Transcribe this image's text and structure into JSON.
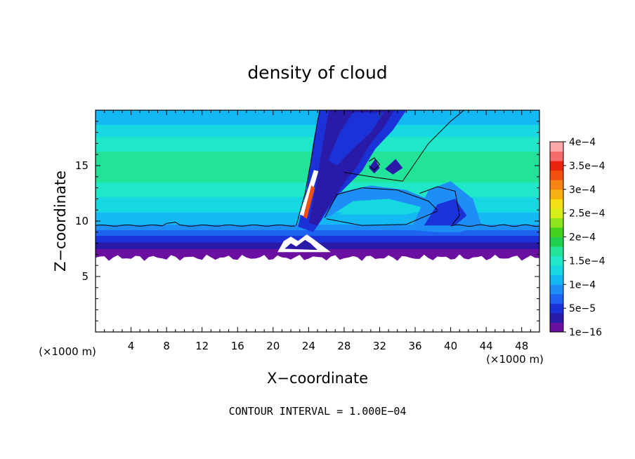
{
  "chart_data": {
    "type": "heatmap",
    "title": "density of cloud",
    "xlabel": "X−coordinate",
    "ylabel": "Z−coordinate",
    "x_unit": "(×1000 m)",
    "y_unit": "(×1000 m)",
    "xlim": [
      0,
      50
    ],
    "ylim": [
      0,
      20
    ],
    "x_ticks": [
      4,
      8,
      12,
      16,
      20,
      24,
      28,
      32,
      36,
      40,
      44,
      48
    ],
    "y_ticks": [
      5,
      10,
      15
    ],
    "footer": "CONTOUR INTERVAL = 1.000E−04",
    "colorbar": {
      "labels": [
        "1e−16",
        "5e−5",
        "1e−4",
        "1.5e−4",
        "2e−4",
        "2.5e−4",
        "3e−4",
        "3.5e−4",
        "4e−4"
      ],
      "values": [
        1e-16,
        5e-05,
        0.0001,
        0.00015,
        0.0002,
        0.00025,
        0.0003,
        0.00035,
        0.0004
      ],
      "colors": [
        "#6a0fa0",
        "#2a1aa8",
        "#1a32d8",
        "#1e62f0",
        "#1d8ef5",
        "#14b8f2",
        "#15d8e0",
        "#1ee8c8",
        "#22e39a",
        "#22d050",
        "#45d21e",
        "#8ee31c",
        "#d7ee18",
        "#f4de14",
        "#f6b012",
        "#f68312",
        "#f2500f",
        "#e8240c",
        "#f46c6c",
        "#ffa8a8"
      ]
    },
    "cloud_base_z": 7,
    "cloud_top_z": 20
  }
}
